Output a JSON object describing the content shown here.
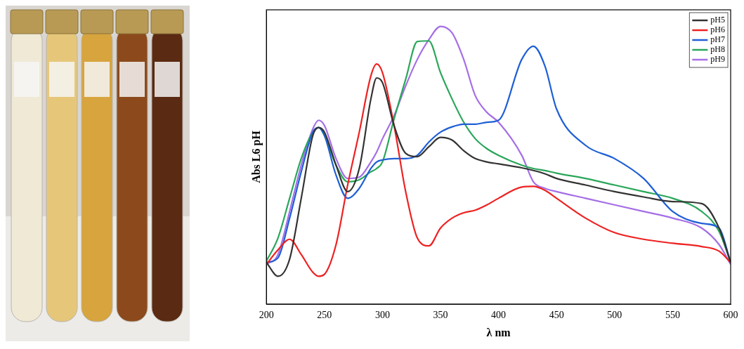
{
  "chart_data": {
    "type": "line",
    "xlabel": "λ nm",
    "ylabel": "Abs L6 pH",
    "x": [
      200,
      210,
      220,
      230,
      240,
      245,
      250,
      260,
      270,
      280,
      290,
      295,
      300,
      310,
      320,
      330,
      340,
      350,
      360,
      370,
      380,
      390,
      400,
      420,
      430,
      440,
      450,
      475,
      500,
      525,
      550,
      575,
      590,
      600
    ],
    "series": [
      {
        "name": "pH5",
        "color": "#333333",
        "values": [
          63,
          42,
          68,
          160,
          255,
          267,
          260,
          210,
          170,
          205,
          310,
          342,
          335,
          270,
          228,
          223,
          238,
          252,
          248,
          232,
          220,
          215,
          212,
          206,
          202,
          197,
          190,
          180,
          170,
          162,
          155,
          152,
          115,
          63
        ]
      },
      {
        "name": "pH6",
        "color": "#ee2222",
        "values": [
          60,
          82,
          98,
          75,
          48,
          42,
          45,
          90,
          180,
          260,
          345,
          363,
          350,
          270,
          170,
          100,
          88,
          115,
          130,
          138,
          142,
          150,
          160,
          177,
          178,
          172,
          160,
          130,
          108,
          98,
          92,
          87,
          80,
          63
        ]
      },
      {
        "name": "pH7",
        "color": "#1f5fd6",
        "values": [
          63,
          70,
          130,
          200,
          260,
          267,
          255,
          195,
          160,
          175,
          205,
          215,
          218,
          220,
          220,
          225,
          245,
          260,
          268,
          272,
          272,
          275,
          278,
          370,
          390,
          360,
          295,
          240,
          220,
          190,
          140,
          122,
          115,
          63
        ]
      },
      {
        "name": "pH8",
        "color": "#2aa65a",
        "values": [
          65,
          100,
          160,
          220,
          260,
          267,
          255,
          210,
          185,
          188,
          200,
          205,
          215,
          280,
          340,
          397,
          398,
          350,
          310,
          275,
          250,
          235,
          225,
          210,
          205,
          202,
          198,
          190,
          180,
          170,
          160,
          140,
          110,
          63
        ]
      },
      {
        "name": "pH9",
        "color": "#a56ee6",
        "values": [
          60,
          75,
          140,
          210,
          265,
          278,
          270,
          220,
          190,
          192,
          215,
          230,
          250,
          285,
          330,
          370,
          400,
          420,
          410,
          370,
          315,
          290,
          275,
          225,
          185,
          175,
          170,
          160,
          150,
          140,
          130,
          115,
          90,
          60
        ]
      }
    ],
    "xlim": [
      200,
      600
    ],
    "xticks": [
      200,
      250,
      300,
      350,
      400,
      450,
      500,
      550,
      600
    ],
    "ylim": [
      0,
      445
    ],
    "tick_labels": "x",
    "grid": false,
    "legend": "upper right"
  }
}
